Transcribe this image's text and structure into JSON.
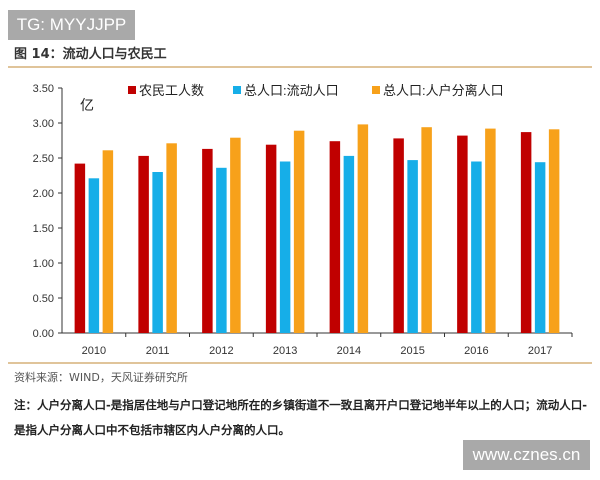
{
  "watermark_top": "TG: MYYJJPP",
  "watermark_bottom": "www.cznes.cn",
  "figure_title": "图 14：流动人口与农民工",
  "source": "资料来源：WIND，天风证券研究所",
  "note": "注：人户分离人口-是指居住地与户口登记地所在的乡镇街道不一致且离开户口登记地半年以上的人口；流动人口-是指人户分离人口中不包括市辖区内人户分离的人口。",
  "chart_data": {
    "type": "bar",
    "title": "",
    "unit_label": "亿",
    "categories": [
      "2010",
      "2011",
      "2012",
      "2013",
      "2014",
      "2015",
      "2016",
      "2017"
    ],
    "ylim": [
      0,
      3.5
    ],
    "yticks": [
      "0.00",
      "0.50",
      "1.00",
      "1.50",
      "2.00",
      "2.50",
      "3.00",
      "3.50"
    ],
    "grid": false,
    "legend_position": "top",
    "series": [
      {
        "name": "农民工人数",
        "color": "#c00000",
        "values": [
          2.42,
          2.53,
          2.63,
          2.69,
          2.74,
          2.78,
          2.82,
          2.87
        ]
      },
      {
        "name": "总人口:流动人口",
        "color": "#16aee8",
        "values": [
          2.21,
          2.3,
          2.36,
          2.45,
          2.53,
          2.47,
          2.45,
          2.44
        ]
      },
      {
        "name": "总人口:人户分离人口",
        "color": "#f7a11a",
        "values": [
          2.61,
          2.71,
          2.79,
          2.89,
          2.98,
          2.94,
          2.92,
          2.91
        ]
      }
    ]
  }
}
